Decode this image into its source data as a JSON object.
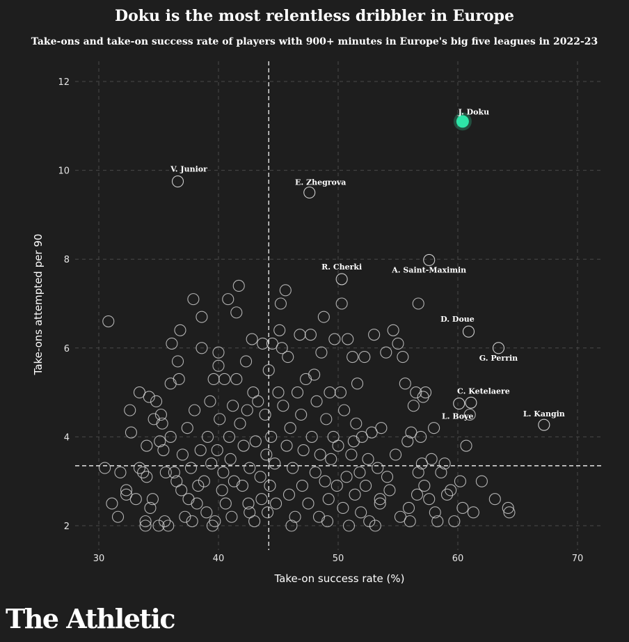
{
  "chart_data": {
    "type": "scatter",
    "title": "Doku is the most relentless dribbler in Europe",
    "subtitle": "Take-ons and take-on success rate of players with 900+ minutes in Europe's big five leagues in 2022-23",
    "xlabel": "Take-on success rate (%)",
    "ylabel": "Take-ons attempted per 90",
    "xlim": [
      28,
      72
    ],
    "ylim": [
      1.6,
      12.3
    ],
    "xticks": [
      30,
      40,
      50,
      60,
      70
    ],
    "yticks": [
      2,
      4,
      6,
      8,
      10,
      12
    ],
    "grid": true,
    "reference_lines": {
      "x_mean": 44.2,
      "y_mean": 3.35
    },
    "colors": {
      "background": "#1e1e1e",
      "highlight": "#2ee6a8",
      "points": "#cfcfcf",
      "grid": "#4a4a4a"
    },
    "highlight": {
      "name": "J. Doku",
      "x": 60.4,
      "y": 11.1
    },
    "labeled": [
      {
        "name": "V. Junior",
        "x": 36.6,
        "y": 9.75
      },
      {
        "name": "E. Zhegrova",
        "x": 47.6,
        "y": 9.5
      },
      {
        "name": "A. Saint-Maximin",
        "x": 57.6,
        "y": 7.98
      },
      {
        "name": "R. Cherki",
        "x": 50.3,
        "y": 7.55
      },
      {
        "name": "D. Doue",
        "x": 60.9,
        "y": 6.37
      },
      {
        "name": "G. Perrin",
        "x": 63.4,
        "y": 6.0
      },
      {
        "name": "C. Ketelaere",
        "x": 61.1,
        "y": 4.77
      },
      {
        "name": "L. Boye",
        "x": 60.1,
        "y": 4.75
      },
      {
        "name": "L. Kangin",
        "x": 67.2,
        "y": 4.27
      }
    ],
    "others": [
      [
        30.8,
        6.6
      ],
      [
        30.5,
        3.3
      ],
      [
        31.1,
        2.5
      ],
      [
        31.6,
        2.2
      ],
      [
        31.8,
        3.2
      ],
      [
        32.3,
        2.8
      ],
      [
        32.3,
        2.7
      ],
      [
        32.6,
        4.6
      ],
      [
        32.7,
        4.1
      ],
      [
        33.1,
        2.6
      ],
      [
        33.4,
        5.0
      ],
      [
        33.4,
        3.3
      ],
      [
        33.7,
        3.2
      ],
      [
        33.9,
        2.1
      ],
      [
        33.9,
        2.0
      ],
      [
        34.0,
        3.8
      ],
      [
        34.0,
        3.1
      ],
      [
        34.2,
        4.9
      ],
      [
        34.3,
        2.4
      ],
      [
        34.5,
        2.6
      ],
      [
        34.6,
        4.4
      ],
      [
        34.8,
        4.8
      ],
      [
        35.0,
        2.0
      ],
      [
        35.1,
        3.9
      ],
      [
        35.2,
        4.5
      ],
      [
        35.3,
        4.3
      ],
      [
        35.4,
        3.7
      ],
      [
        35.5,
        2.1
      ],
      [
        35.6,
        3.2
      ],
      [
        35.8,
        2.0
      ],
      [
        36.0,
        5.2
      ],
      [
        36.1,
        6.1
      ],
      [
        36.3,
        3.2
      ],
      [
        36.5,
        3.0
      ],
      [
        36.6,
        5.7
      ],
      [
        36.7,
        5.3
      ],
      [
        36.8,
        6.4
      ],
      [
        36.9,
        2.8
      ],
      [
        37.0,
        3.6
      ],
      [
        37.2,
        2.2
      ],
      [
        37.4,
        4.2
      ],
      [
        37.5,
        2.6
      ],
      [
        37.7,
        3.3
      ],
      [
        37.9,
        7.1
      ],
      [
        38.0,
        4.6
      ],
      [
        38.2,
        2.5
      ],
      [
        38.3,
        2.9
      ],
      [
        38.5,
        3.7
      ],
      [
        38.6,
        6.0
      ],
      [
        38.6,
        6.7
      ],
      [
        38.8,
        3.0
      ],
      [
        39.0,
        2.3
      ],
      [
        39.1,
        4.0
      ],
      [
        39.3,
        4.8
      ],
      [
        39.4,
        3.4
      ],
      [
        39.6,
        5.3
      ],
      [
        39.7,
        2.1
      ],
      [
        39.9,
        3.7
      ],
      [
        40.0,
        5.6
      ],
      [
        40.0,
        5.9
      ],
      [
        40.1,
        4.4
      ],
      [
        40.3,
        2.8
      ],
      [
        40.4,
        3.2
      ],
      [
        40.5,
        5.3
      ],
      [
        40.6,
        2.5
      ],
      [
        40.8,
        7.1
      ],
      [
        40.9,
        4.0
      ],
      [
        41.0,
        3.5
      ],
      [
        41.1,
        2.2
      ],
      [
        41.2,
        4.7
      ],
      [
        41.3,
        3.0
      ],
      [
        41.5,
        6.8
      ],
      [
        41.5,
        5.3
      ],
      [
        41.7,
        7.4
      ],
      [
        41.8,
        4.3
      ],
      [
        42.0,
        2.9
      ],
      [
        42.1,
        3.8
      ],
      [
        42.3,
        5.7
      ],
      [
        42.4,
        4.6
      ],
      [
        42.5,
        2.5
      ],
      [
        42.6,
        3.3
      ],
      [
        42.8,
        6.2
      ],
      [
        42.9,
        5.0
      ],
      [
        43.0,
        2.1
      ],
      [
        43.1,
        3.9
      ],
      [
        43.3,
        4.8
      ],
      [
        43.5,
        3.1
      ],
      [
        43.6,
        2.6
      ],
      [
        43.7,
        6.1
      ],
      [
        43.9,
        4.5
      ],
      [
        44.0,
        3.6
      ],
      [
        44.1,
        2.3
      ],
      [
        44.2,
        5.5
      ],
      [
        44.3,
        2.9
      ],
      [
        44.4,
        4.0
      ],
      [
        44.5,
        6.1
      ],
      [
        44.7,
        3.4
      ],
      [
        44.8,
        2.5
      ],
      [
        45.0,
        5.0
      ],
      [
        45.1,
        6.4
      ],
      [
        45.2,
        7.0
      ],
      [
        45.3,
        6.0
      ],
      [
        45.4,
        4.7
      ],
      [
        45.6,
        7.3
      ],
      [
        45.7,
        3.8
      ],
      [
        45.8,
        5.8
      ],
      [
        45.9,
        2.7
      ],
      [
        46.0,
        4.2
      ],
      [
        46.2,
        3.3
      ],
      [
        46.4,
        2.2
      ],
      [
        46.6,
        5.0
      ],
      [
        46.8,
        6.3
      ],
      [
        46.9,
        4.5
      ],
      [
        47.0,
        2.9
      ],
      [
        47.1,
        3.7
      ],
      [
        47.3,
        5.3
      ],
      [
        47.5,
        2.5
      ],
      [
        47.7,
        6.3
      ],
      [
        47.8,
        4.0
      ],
      [
        48.0,
        5.4
      ],
      [
        48.1,
        3.2
      ],
      [
        48.2,
        4.8
      ],
      [
        48.4,
        2.2
      ],
      [
        48.5,
        3.6
      ],
      [
        48.6,
        5.9
      ],
      [
        48.8,
        6.7
      ],
      [
        48.9,
        3.0
      ],
      [
        49.0,
        4.4
      ],
      [
        49.2,
        2.6
      ],
      [
        49.3,
        5.0
      ],
      [
        49.4,
        3.5
      ],
      [
        49.6,
        4.0
      ],
      [
        49.7,
        6.2
      ],
      [
        49.9,
        2.9
      ],
      [
        50.0,
        3.8
      ],
      [
        50.2,
        5.0
      ],
      [
        50.3,
        7.0
      ],
      [
        50.4,
        2.4
      ],
      [
        50.5,
        4.6
      ],
      [
        50.7,
        3.1
      ],
      [
        50.8,
        6.2
      ],
      [
        50.9,
        2.0
      ],
      [
        51.1,
        3.6
      ],
      [
        51.2,
        5.8
      ],
      [
        51.4,
        2.7
      ],
      [
        51.5,
        4.3
      ],
      [
        51.6,
        5.2
      ],
      [
        51.8,
        3.2
      ],
      [
        51.9,
        2.3
      ],
      [
        52.0,
        4.0
      ],
      [
        52.2,
        5.8
      ],
      [
        52.3,
        2.9
      ],
      [
        52.5,
        3.5
      ],
      [
        52.6,
        2.1
      ],
      [
        52.8,
        4.1
      ],
      [
        53.0,
        6.3
      ],
      [
        53.1,
        2.0
      ],
      [
        53.3,
        3.3
      ],
      [
        53.5,
        2.6
      ],
      [
        53.6,
        4.2
      ],
      [
        54.0,
        5.9
      ],
      [
        54.1,
        3.1
      ],
      [
        54.3,
        2.8
      ],
      [
        54.6,
        6.4
      ],
      [
        54.8,
        3.6
      ],
      [
        55.0,
        6.1
      ],
      [
        55.2,
        2.2
      ],
      [
        55.4,
        5.8
      ],
      [
        55.6,
        5.2
      ],
      [
        55.8,
        3.9
      ],
      [
        55.9,
        2.4
      ],
      [
        56.0,
        2.1
      ],
      [
        56.1,
        4.1
      ],
      [
        56.3,
        4.7
      ],
      [
        56.5,
        5.0
      ],
      [
        56.6,
        2.7
      ],
      [
        56.7,
        3.2
      ],
      [
        56.9,
        4.0
      ],
      [
        57.0,
        3.4
      ],
      [
        57.1,
        4.9
      ],
      [
        57.2,
        2.9
      ],
      [
        57.3,
        5.0
      ],
      [
        57.6,
        2.6
      ],
      [
        57.8,
        3.5
      ],
      [
        58.0,
        4.2
      ],
      [
        58.1,
        2.3
      ],
      [
        58.3,
        2.1
      ],
      [
        58.6,
        3.2
      ],
      [
        58.9,
        3.4
      ],
      [
        59.1,
        2.7
      ],
      [
        59.4,
        2.8
      ],
      [
        59.7,
        2.1
      ],
      [
        60.2,
        3.0
      ],
      [
        60.4,
        2.4
      ],
      [
        60.7,
        3.8
      ],
      [
        61.0,
        4.5
      ],
      [
        61.3,
        2.3
      ],
      [
        62.0,
        3.0
      ],
      [
        63.1,
        2.6
      ],
      [
        64.2,
        2.4
      ],
      [
        64.3,
        2.3
      ],
      [
        56.7,
        7.0
      ],
      [
        53.5,
        2.5
      ],
      [
        39.5,
        2.0
      ],
      [
        37.8,
        2.1
      ],
      [
        42.6,
        2.3
      ],
      [
        46.1,
        2.0
      ],
      [
        49.1,
        2.1
      ],
      [
        51.3,
        3.9
      ],
      [
        36.0,
        4.0
      ]
    ]
  },
  "branding": {
    "logo": "The Athletic"
  }
}
